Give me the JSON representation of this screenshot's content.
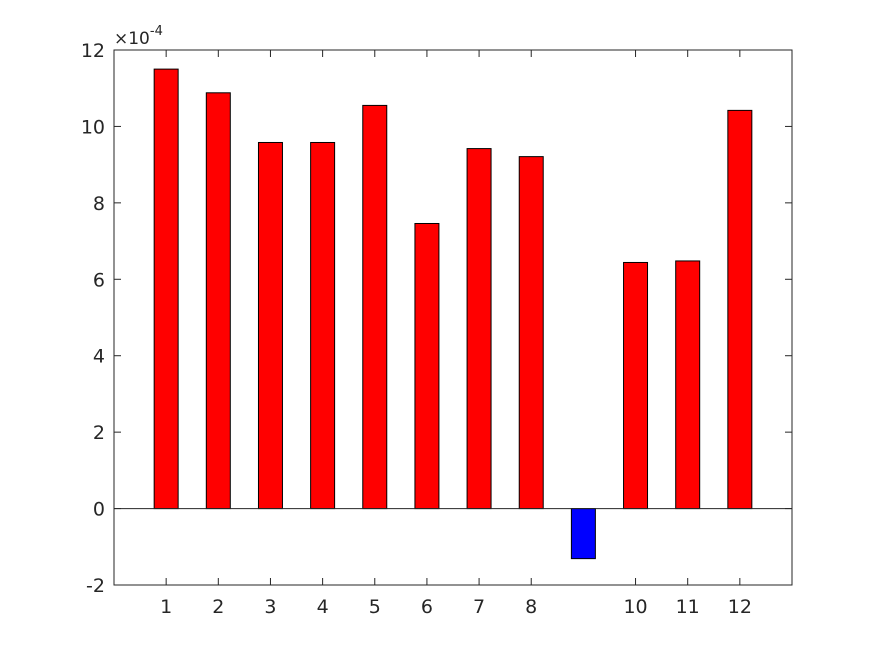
{
  "chart_data": {
    "type": "bar",
    "categories": [
      "1",
      "2",
      "3",
      "4",
      "5",
      "6",
      "7",
      "8",
      "",
      "10",
      "11",
      "12"
    ],
    "values": [
      11.5,
      10.88,
      9.58,
      9.58,
      10.55,
      7.46,
      9.42,
      9.21,
      -1.31,
      6.44,
      6.48,
      10.42
    ],
    "series_positions": [
      1,
      2,
      3,
      4,
      5,
      6,
      7,
      8,
      9,
      10,
      11,
      12
    ],
    "xlim": [
      0,
      13
    ],
    "ylim": [
      -2,
      12
    ],
    "yticks": [
      -2,
      0,
      2,
      4,
      6,
      8,
      10,
      12
    ],
    "ytick_labels": [
      "-2",
      "0",
      "2",
      "4",
      "6",
      "8",
      "10",
      "12"
    ],
    "xtick_labels": [
      "1",
      "2",
      "3",
      "4",
      "5",
      "6",
      "7",
      "8",
      "10",
      "11",
      "12"
    ],
    "xtick_positions": [
      1,
      2,
      3,
      4,
      5,
      6,
      7,
      8,
      10,
      11,
      12
    ],
    "exponent_base": "×10",
    "exponent_power": "-4",
    "colors": {
      "positive": "#ff0000",
      "negative": "#0000ff",
      "edge": "#000000",
      "axis": "#262626"
    },
    "grid": false,
    "legend": "none",
    "title": "",
    "xlabel": "",
    "ylabel": ""
  }
}
